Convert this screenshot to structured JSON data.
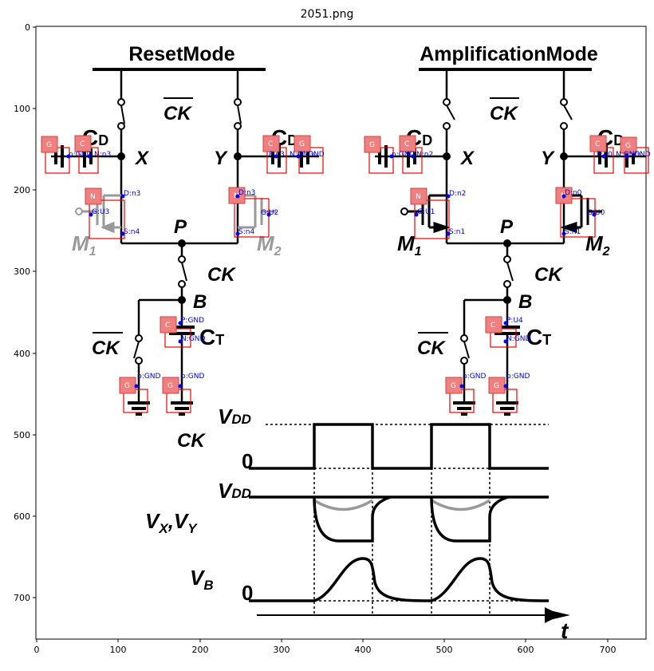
{
  "figure": {
    "title": "2051.png",
    "x_ticks": [
      "0",
      "100",
      "200",
      "300",
      "400",
      "500",
      "600",
      "700"
    ],
    "y_ticks": [
      "0",
      "100",
      "200",
      "300",
      "400",
      "500",
      "600",
      "700"
    ]
  },
  "reset_mode": {
    "title": "ResetMode",
    "ck_bar": "CK",
    "node_x": "X",
    "node_y": "Y",
    "node_p": "P",
    "node_b": "B",
    "ck": "CK",
    "ck_bar_bottom": "CK",
    "cd_left": "C",
    "cd_left_sub": "D",
    "cd_right": "C",
    "cd_right_sub": "D",
    "ct": "C",
    "ct_sub": "T",
    "m1": "M",
    "m1_sub": "1",
    "m2": "M",
    "m2_sub": "2",
    "tags": {
      "g_left": "G",
      "c_left": "C",
      "c_right": "C",
      "g_right": "G",
      "n_left": "N",
      "n_right": "N",
      "c_t": "C",
      "g_b1": "G",
      "g_b2": "G"
    },
    "annotations": {
      "cap_left": "p:GND",
      "cap_left2": "N:n3",
      "cap_right": "P:n3",
      "cap_right2": "N:GND",
      "cap_right3": "GND",
      "m1_d": "D:n3",
      "m1_g": "G:U3",
      "m1_s": "S:n4",
      "m2_d": "D:n3",
      "m2_g": "G:U2",
      "m2_s": "S:n4",
      "ct_p": "P:GND",
      "ct_n": "N:GND",
      "gnd1": "p:GND",
      "gnd2": "p:GND"
    }
  },
  "amp_mode": {
    "title": "AmplificationMode",
    "ck_bar": "CK",
    "node_x": "X",
    "node_y": "Y",
    "node_p": "P",
    "node_b": "B",
    "ck": "CK",
    "ck_bar_bottom": "CK",
    "cd_left": "C",
    "cd_left_sub": "D",
    "cd_right": "C",
    "cd_right_sub": "D",
    "ct": "C",
    "ct_sub": "T",
    "m1": "M",
    "m1_sub": "1",
    "m2": "M",
    "m2_sub": "2",
    "tags": {
      "g_left": "G",
      "c_left": "C",
      "c_right": "C",
      "g_right": "G",
      "n_left": "N",
      "n_right": "N",
      "c_t": "C",
      "g_b1": "G",
      "g_b2": "G"
    },
    "annotations": {
      "cap_left": "p:GND",
      "cap_left2": "N:n2",
      "cap_right": "P:n0",
      "cap_right2": "N:GND",
      "cap_right3": "GND",
      "m1_d": "D:n2",
      "m1_g": "G:U1",
      "m1_s": "S:n1",
      "m2_d": "D:n0",
      "m2_g": "G:U0",
      "m2_s": "S:n1",
      "ct_p": "P:U4",
      "ct_n": "N:GND",
      "gnd1": "p:GND",
      "gnd2": "p:GND"
    }
  },
  "timing": {
    "ck": "CK",
    "vdd_1": "V",
    "vdd_1_sub": "DD",
    "zero_1": "0",
    "vdd_2": "V",
    "vdd_2_sub": "DD",
    "vxvy": "V",
    "vxvy_sub": "X",
    "vxvy_sep": ",V",
    "vxvy_sub2": "Y",
    "vb": "V",
    "vb_sub": "B",
    "zero_2": "0",
    "t": "t"
  }
}
